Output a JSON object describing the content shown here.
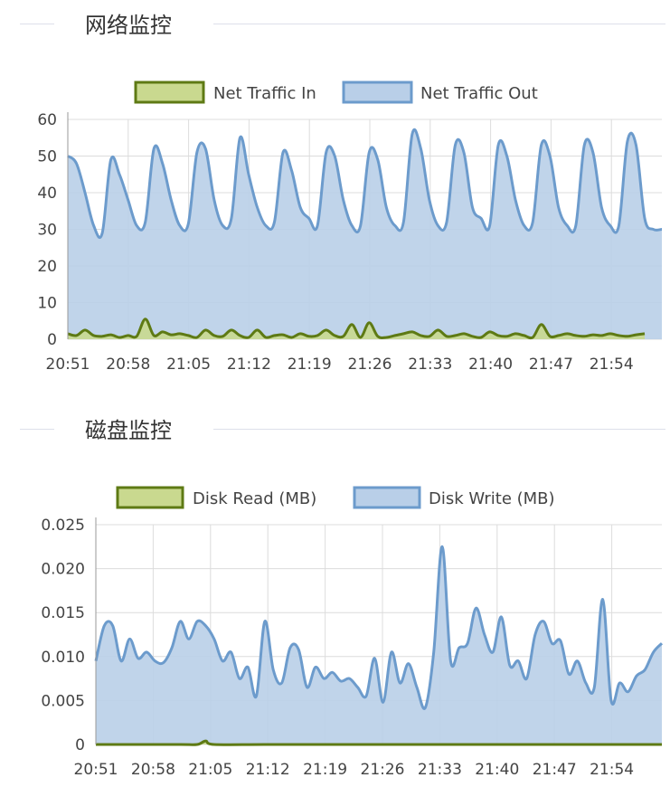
{
  "sections": [
    {
      "title": "网络监控"
    },
    {
      "title": "磁盘监控"
    }
  ],
  "colors": {
    "green_fill": "#c9d98f",
    "green_stroke": "#5e7a14",
    "blue_fill": "#b9cfe8",
    "blue_stroke": "#6c9bcc",
    "grid": "#dcdcdc",
    "axis_text": "#444444"
  },
  "chart_data": [
    {
      "type": "area",
      "legend": "top-center",
      "grid": true,
      "x_tick_labels": [
        "20:51",
        "20:58",
        "21:05",
        "21:12",
        "21:19",
        "21:26",
        "21:33",
        "21:40",
        "21:47",
        "21:54"
      ],
      "x_start": "20:51",
      "x_end": "21:58",
      "ylim": [
        0,
        60
      ],
      "y_ticks": [
        "0",
        "10",
        "20",
        "30",
        "40",
        "50",
        "60"
      ],
      "series": [
        {
          "name": "Net Traffic In",
          "color": "green",
          "points": [
            [
              0,
              1.5
            ],
            [
              1,
              1
            ],
            [
              2,
              2.5
            ],
            [
              3,
              1
            ],
            [
              4,
              0.8
            ],
            [
              5,
              1.2
            ],
            [
              6,
              0.5
            ],
            [
              7,
              1
            ],
            [
              8,
              0.8
            ],
            [
              9,
              5.5
            ],
            [
              10,
              1
            ],
            [
              11,
              2
            ],
            [
              12,
              1.2
            ],
            [
              13,
              1.5
            ],
            [
              14,
              1
            ],
            [
              15,
              0.5
            ],
            [
              16,
              2.5
            ],
            [
              17,
              1
            ],
            [
              18,
              0.8
            ],
            [
              19,
              2.5
            ],
            [
              20,
              1
            ],
            [
              21,
              0.5
            ],
            [
              22,
              2.5
            ],
            [
              23,
              0.5
            ],
            [
              24,
              1
            ],
            [
              25,
              1.2
            ],
            [
              26,
              0.5
            ],
            [
              27,
              1.5
            ],
            [
              28,
              0.8
            ],
            [
              29,
              1
            ],
            [
              30,
              2.5
            ],
            [
              31,
              1
            ],
            [
              32,
              0.8
            ],
            [
              33,
              4
            ],
            [
              34,
              0.5
            ],
            [
              35,
              4.5
            ],
            [
              36,
              0.8
            ],
            [
              37,
              0.5
            ],
            [
              38,
              1
            ],
            [
              39,
              1.5
            ],
            [
              40,
              2
            ],
            [
              41,
              1
            ],
            [
              42,
              0.8
            ],
            [
              43,
              2.5
            ],
            [
              44,
              0.8
            ],
            [
              45,
              1
            ],
            [
              46,
              1.5
            ],
            [
              47,
              0.8
            ],
            [
              48,
              0.5
            ],
            [
              49,
              2
            ],
            [
              50,
              1
            ],
            [
              51,
              0.8
            ],
            [
              52,
              1.5
            ],
            [
              53,
              1
            ],
            [
              54,
              0.5
            ],
            [
              55,
              4
            ],
            [
              56,
              0.8
            ],
            [
              57,
              1
            ],
            [
              58,
              1.5
            ],
            [
              59,
              1
            ],
            [
              60,
              0.8
            ],
            [
              61,
              1.2
            ],
            [
              62,
              1
            ],
            [
              63,
              1.5
            ],
            [
              64,
              1
            ],
            [
              65,
              0.8
            ],
            [
              66,
              1.2
            ],
            [
              67,
              1.5
            ]
          ]
        },
        {
          "name": "Net Traffic Out",
          "color": "blue",
          "points": [
            [
              0,
              50
            ],
            [
              1,
              48
            ],
            [
              2,
              40
            ],
            [
              3,
              31
            ],
            [
              4,
              29
            ],
            [
              5,
              49
            ],
            [
              6,
              45
            ],
            [
              7,
              38
            ],
            [
              8,
              31
            ],
            [
              9,
              32
            ],
            [
              10,
              52
            ],
            [
              11,
              48
            ],
            [
              12,
              38
            ],
            [
              13,
              31
            ],
            [
              14,
              31.5
            ],
            [
              15,
              51
            ],
            [
              16,
              52
            ],
            [
              17,
              38
            ],
            [
              18,
              31
            ],
            [
              19,
              33
            ],
            [
              20,
              55
            ],
            [
              21,
              45
            ],
            [
              22,
              36
            ],
            [
              23,
              31
            ],
            [
              24,
              32
            ],
            [
              25,
              51
            ],
            [
              26,
              46
            ],
            [
              27,
              36
            ],
            [
              28,
              33
            ],
            [
              29,
              31
            ],
            [
              30,
              51
            ],
            [
              31,
              50
            ],
            [
              32,
              38
            ],
            [
              33,
              31
            ],
            [
              34,
              31
            ],
            [
              35,
              51
            ],
            [
              36,
              49
            ],
            [
              37,
              36
            ],
            [
              38,
              31
            ],
            [
              39,
              32
            ],
            [
              40,
              56
            ],
            [
              41,
              52
            ],
            [
              42,
              38
            ],
            [
              43,
              31
            ],
            [
              44,
              32
            ],
            [
              45,
              53
            ],
            [
              46,
              51
            ],
            [
              47,
              36
            ],
            [
              48,
              33
            ],
            [
              49,
              31
            ],
            [
              50,
              53
            ],
            [
              51,
              50
            ],
            [
              52,
              38
            ],
            [
              53,
              31
            ],
            [
              54,
              32
            ],
            [
              55,
              53
            ],
            [
              56,
              50
            ],
            [
              57,
              36
            ],
            [
              58,
              31
            ],
            [
              59,
              31
            ],
            [
              60,
              53
            ],
            [
              61,
              51
            ],
            [
              62,
              36
            ],
            [
              63,
              31
            ],
            [
              64,
              31
            ],
            [
              65,
              54
            ],
            [
              66,
              53
            ],
            [
              67,
              33
            ],
            [
              68,
              30
            ],
            [
              69,
              30
            ]
          ]
        }
      ]
    },
    {
      "type": "area",
      "legend": "top-center",
      "grid": true,
      "x_tick_labels": [
        "20:51",
        "20:58",
        "21:05",
        "21:12",
        "21:19",
        "21:26",
        "21:33",
        "21:40",
        "21:47",
        "21:54"
      ],
      "x_start": "20:51",
      "x_end": "21:58",
      "ylim": [
        0,
        0.025
      ],
      "y_ticks": [
        "0",
        "0.005",
        "0.010",
        "0.015",
        "0.020",
        "0.025"
      ],
      "series": [
        {
          "name": "Disk Read (MB)",
          "color": "green",
          "points": [
            [
              0,
              0
            ],
            [
              5,
              0
            ],
            [
              10,
              0
            ],
            [
              12,
              0
            ],
            [
              13,
              0.0004
            ],
            [
              14,
              0
            ],
            [
              20,
              0
            ],
            [
              30,
              0
            ],
            [
              40,
              0
            ],
            [
              50,
              0
            ],
            [
              60,
              0
            ],
            [
              67,
              0
            ]
          ]
        },
        {
          "name": "Disk Write (MB)",
          "color": "blue",
          "points": [
            [
              0,
              0.0095
            ],
            [
              1,
              0.0135
            ],
            [
              2,
              0.0135
            ],
            [
              3,
              0.0095
            ],
            [
              4,
              0.012
            ],
            [
              5,
              0.0098
            ],
            [
              6,
              0.0105
            ],
            [
              7,
              0.0095
            ],
            [
              8,
              0.0093
            ],
            [
              9,
              0.011
            ],
            [
              10,
              0.014
            ],
            [
              11,
              0.012
            ],
            [
              12,
              0.014
            ],
            [
              13,
              0.0135
            ],
            [
              14,
              0.012
            ],
            [
              15,
              0.0095
            ],
            [
              16,
              0.0105
            ],
            [
              17,
              0.0075
            ],
            [
              18,
              0.0088
            ],
            [
              19,
              0.0055
            ],
            [
              20,
              0.014
            ],
            [
              21,
              0.0085
            ],
            [
              22,
              0.007
            ],
            [
              23,
              0.011
            ],
            [
              24,
              0.0108
            ],
            [
              25,
              0.0065
            ],
            [
              26,
              0.0088
            ],
            [
              27,
              0.0075
            ],
            [
              28,
              0.0082
            ],
            [
              29,
              0.0072
            ],
            [
              30,
              0.0075
            ],
            [
              31,
              0.0065
            ],
            [
              32,
              0.0055
            ],
            [
              33,
              0.0098
            ],
            [
              34,
              0.0048
            ],
            [
              35,
              0.0105
            ],
            [
              36,
              0.007
            ],
            [
              37,
              0.0092
            ],
            [
              38,
              0.0065
            ],
            [
              39,
              0.0042
            ],
            [
              40,
              0.0105
            ],
            [
              41,
              0.0225
            ],
            [
              42,
              0.0095
            ],
            [
              43,
              0.011
            ],
            [
              44,
              0.0115
            ],
            [
              45,
              0.0155
            ],
            [
              46,
              0.0125
            ],
            [
              47,
              0.0105
            ],
            [
              48,
              0.0145
            ],
            [
              49,
              0.009
            ],
            [
              50,
              0.0095
            ],
            [
              51,
              0.0075
            ],
            [
              52,
              0.0125
            ],
            [
              53,
              0.014
            ],
            [
              54,
              0.0115
            ],
            [
              55,
              0.0118
            ],
            [
              56,
              0.008
            ],
            [
              57,
              0.0095
            ],
            [
              58,
              0.007
            ],
            [
              59,
              0.0065
            ],
            [
              60,
              0.0165
            ],
            [
              61,
              0.005
            ],
            [
              62,
              0.007
            ],
            [
              63,
              0.006
            ],
            [
              64,
              0.0078
            ],
            [
              65,
              0.0085
            ],
            [
              66,
              0.0105
            ],
            [
              67,
              0.0115
            ]
          ]
        }
      ]
    }
  ]
}
